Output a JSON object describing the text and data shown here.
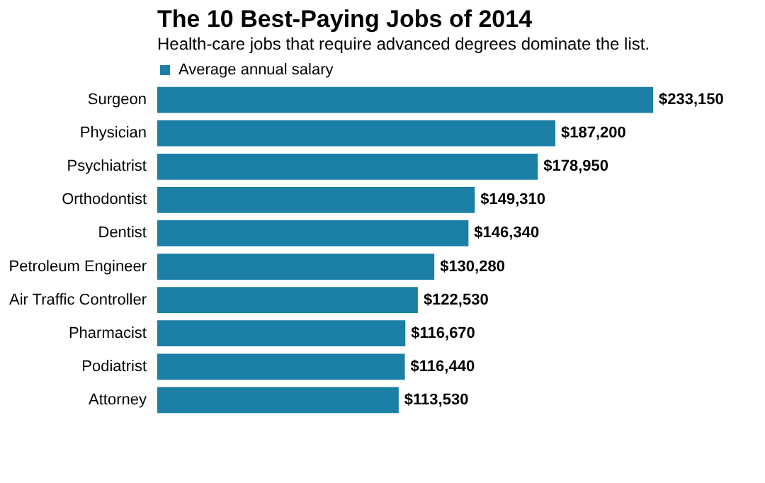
{
  "chart_data": {
    "type": "bar",
    "orientation": "horizontal",
    "title": "The 10 Best-Paying Jobs of 2014",
    "subtitle": "Health-care jobs that require advanced degrees dominate the list.",
    "categories": [
      "Surgeon",
      "Physician",
      "Psychiatrist",
      "Orthodontist",
      "Dentist",
      "Petroleum Engineer",
      "Air Traffic Controller",
      "Pharmacist",
      "Podiatrist",
      "Attorney"
    ],
    "series": [
      {
        "name": "Average annual salary",
        "color": "#1b7fa6",
        "values": [
          233150,
          187200,
          178950,
          149310,
          146340,
          130280,
          122530,
          116670,
          116440,
          113530
        ],
        "value_labels": [
          "$233,150",
          "$187,200",
          "$178,950",
          "$149,310",
          "$146,340",
          "$130,280",
          "$122,530",
          "$116,670",
          "$116,440",
          "$113,530"
        ]
      }
    ],
    "legend": "top",
    "grid": false
  }
}
